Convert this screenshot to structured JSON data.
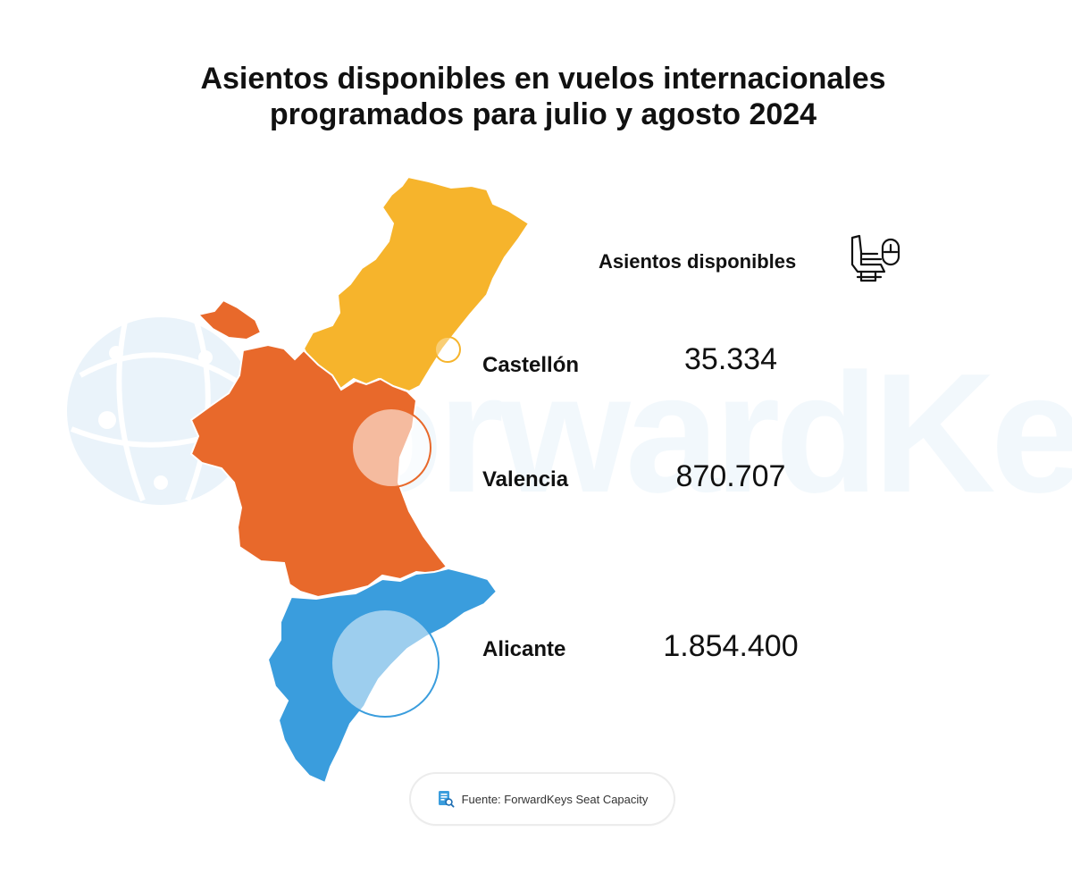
{
  "title_line1": "Asientos disponibles en vuelos internacionales",
  "title_line2": "programados para julio y agosto 2024",
  "legend_label": "Asientos disponibles",
  "watermark_text": "ForwardKeys",
  "provinces": [
    {
      "name": "Castellón",
      "value": "35.334",
      "color": "#f6b42c"
    },
    {
      "name": "Valencia",
      "value": "870.707",
      "color": "#e8692b"
    },
    {
      "name": "Alicante",
      "value": "1.854.400",
      "color": "#3a9ddd"
    }
  ],
  "source": "Fuente: ForwardKeys Seat Capacity",
  "icons": [
    "airplane-seat-icon",
    "document-search-icon",
    "globe-network-icon"
  ]
}
